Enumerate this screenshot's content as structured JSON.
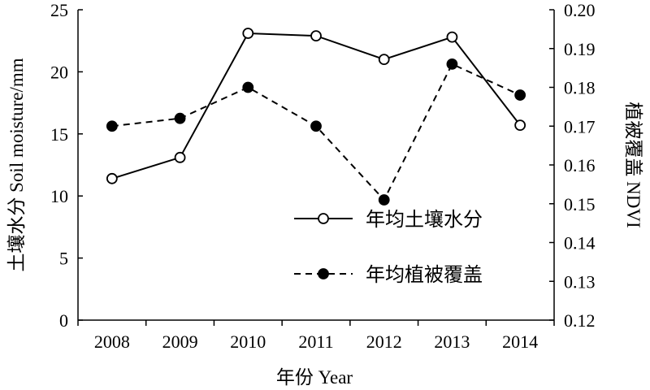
{
  "chart_data": {
    "type": "line",
    "categories": [
      "2008",
      "2009",
      "2010",
      "2011",
      "2012",
      "2013",
      "2014"
    ],
    "xlabel": "年份 Year",
    "ylabel_left": "土壤水分 Soil moisture/mm",
    "ylabel_right": "植被覆盖 NDVI",
    "ylim_left": [
      0,
      25
    ],
    "ylim_right": [
      0.12,
      0.2
    ],
    "yticks_left": [
      "0",
      "5",
      "10",
      "15",
      "20",
      "25"
    ],
    "yticks_right": [
      "0.12",
      "0.13",
      "0.14",
      "0.15",
      "0.16",
      "0.17",
      "0.18",
      "0.19",
      "0.20"
    ],
    "grid": false,
    "legend_position": "center-right",
    "series": [
      {
        "name": "年均土壤水分",
        "axis": "left",
        "style": "solid",
        "marker": "open-circle",
        "values": [
          11.4,
          13.1,
          23.1,
          22.9,
          21.0,
          22.8,
          15.7
        ]
      },
      {
        "name": "年均植被覆盖",
        "axis": "right",
        "style": "dashed",
        "marker": "filled-circle",
        "values": [
          0.17,
          0.172,
          0.18,
          0.17,
          0.151,
          0.186,
          0.178
        ]
      }
    ]
  }
}
